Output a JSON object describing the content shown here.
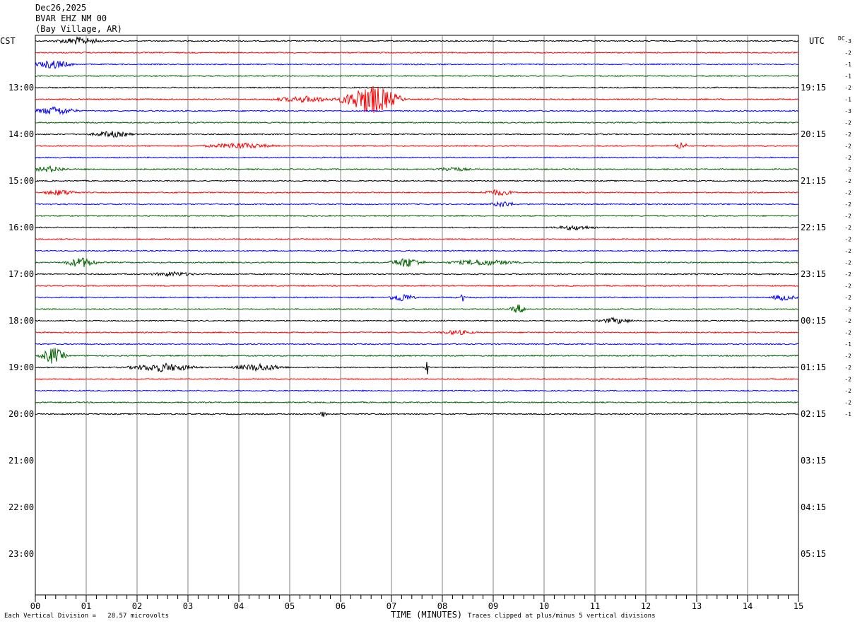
{
  "header": {
    "date": "Dec26,2025",
    "station": "BVAR EHZ NM 00",
    "location": "(Bay Village, AR)"
  },
  "left_axis_title": "CST",
  "right_axis_title": "UTC",
  "dc_label": "DC",
  "footer": {
    "vertical_division": "Each Vertical Division =   28.57 microvolts",
    "x_title": "TIME (MINUTES)",
    "clip_note": "Traces clipped at plus/minus 5 vertical divisions"
  },
  "chart_data": {
    "type": "line",
    "title": "",
    "xlabel": "TIME (MINUTES)",
    "xlim": [
      0,
      15
    ],
    "x_ticks": [
      "00",
      "01",
      "02",
      "03",
      "04",
      "05",
      "06",
      "07",
      "08",
      "09",
      "10",
      "11",
      "12",
      "13",
      "14",
      "15"
    ],
    "rows_total": 48,
    "row_minutes": 15,
    "left_hour_labels": [
      {
        "row": 4,
        "label": "13:00"
      },
      {
        "row": 8,
        "label": "14:00"
      },
      {
        "row": 12,
        "label": "15:00"
      },
      {
        "row": 16,
        "label": "16:00"
      },
      {
        "row": 20,
        "label": "17:00"
      },
      {
        "row": 24,
        "label": "18:00"
      },
      {
        "row": 28,
        "label": "19:00"
      },
      {
        "row": 32,
        "label": "20:00"
      },
      {
        "row": 36,
        "label": "21:00"
      },
      {
        "row": 40,
        "label": "22:00"
      },
      {
        "row": 44,
        "label": "23:00"
      }
    ],
    "right_hour_labels": [
      {
        "row": 4,
        "label": "19:15"
      },
      {
        "row": 8,
        "label": "20:15"
      },
      {
        "row": 12,
        "label": "21:15"
      },
      {
        "row": 16,
        "label": "22:15"
      },
      {
        "row": 20,
        "label": "23:15"
      },
      {
        "row": 24,
        "label": "00:15"
      },
      {
        "row": 28,
        "label": "01:15"
      },
      {
        "row": 32,
        "label": "02:15"
      },
      {
        "row": 36,
        "label": "03:15"
      },
      {
        "row": 40,
        "label": "04:15"
      },
      {
        "row": 44,
        "label": "05:15"
      }
    ],
    "dc_offsets": [
      "-3",
      "-2",
      "-1",
      "-1",
      "-2",
      "-1",
      "-3",
      "-2",
      "-2",
      "-2",
      "-2",
      "-2",
      "-2",
      "-2",
      "-2",
      "-2",
      "-2",
      "-2",
      "-2",
      "-2",
      "-2",
      "-2",
      "-2",
      "-2",
      "-2",
      "-2",
      "-1",
      "-2",
      "-2",
      "-2",
      "-2",
      "-2",
      "-1"
    ],
    "trace_colors": [
      "#000000",
      "#ff0000",
      "#0000ff",
      "#006400"
    ],
    "grid": true,
    "traces": [
      {
        "row": 0,
        "bursts": [
          {
            "t": 0.85,
            "dur": 0.55,
            "amp": 5
          }
        ]
      },
      {
        "row": 1,
        "bursts": []
      },
      {
        "row": 2,
        "bursts": [
          {
            "t": 0.35,
            "dur": 0.45,
            "amp": 6
          }
        ]
      },
      {
        "row": 3,
        "bursts": []
      },
      {
        "row": 4,
        "bursts": []
      },
      {
        "row": 5,
        "bursts": [
          {
            "t": 5.3,
            "dur": 0.8,
            "amp": 4
          },
          {
            "t": 6.6,
            "dur": 0.7,
            "amp": 22
          }
        ]
      },
      {
        "row": 6,
        "bursts": [
          {
            "t": 0.4,
            "dur": 0.5,
            "amp": 6
          }
        ]
      },
      {
        "row": 7,
        "bursts": []
      },
      {
        "row": 8,
        "bursts": [
          {
            "t": 1.5,
            "dur": 0.5,
            "amp": 4
          }
        ]
      },
      {
        "row": 9,
        "bursts": [
          {
            "t": 4.0,
            "dur": 0.8,
            "amp": 4
          },
          {
            "t": 12.7,
            "dur": 0.15,
            "amp": 6
          }
        ]
      },
      {
        "row": 10,
        "bursts": []
      },
      {
        "row": 11,
        "bursts": [
          {
            "t": 0.3,
            "dur": 0.4,
            "amp": 4
          },
          {
            "t": 8.2,
            "dur": 0.4,
            "amp": 3
          }
        ]
      },
      {
        "row": 12,
        "bursts": []
      },
      {
        "row": 13,
        "bursts": [
          {
            "t": 0.5,
            "dur": 0.4,
            "amp": 4
          },
          {
            "t": 9.1,
            "dur": 0.4,
            "amp": 4
          }
        ]
      },
      {
        "row": 14,
        "bursts": [
          {
            "t": 9.2,
            "dur": 0.3,
            "amp": 4
          }
        ]
      },
      {
        "row": 15,
        "bursts": []
      },
      {
        "row": 16,
        "bursts": [
          {
            "t": 10.6,
            "dur": 0.5,
            "amp": 3
          }
        ]
      },
      {
        "row": 17,
        "bursts": []
      },
      {
        "row": 18,
        "bursts": []
      },
      {
        "row": 19,
        "bursts": [
          {
            "t": 0.9,
            "dur": 0.4,
            "amp": 7
          },
          {
            "t": 7.3,
            "dur": 0.4,
            "amp": 7
          },
          {
            "t": 8.8,
            "dur": 0.8,
            "amp": 4
          }
        ]
      },
      {
        "row": 20,
        "bursts": [
          {
            "t": 2.7,
            "dur": 0.5,
            "amp": 3
          }
        ]
      },
      {
        "row": 21,
        "bursts": []
      },
      {
        "row": 22,
        "bursts": [
          {
            "t": 7.2,
            "dur": 0.3,
            "amp": 6
          },
          {
            "t": 8.4,
            "dur": 0.05,
            "amp": 7
          },
          {
            "t": 14.7,
            "dur": 0.3,
            "amp": 4
          }
        ]
      },
      {
        "row": 23,
        "bursts": [
          {
            "t": 9.5,
            "dur": 0.2,
            "amp": 6
          }
        ]
      },
      {
        "row": 24,
        "bursts": [
          {
            "t": 11.4,
            "dur": 0.4,
            "amp": 4
          }
        ]
      },
      {
        "row": 25,
        "bursts": [
          {
            "t": 8.3,
            "dur": 0.4,
            "amp": 3
          }
        ]
      },
      {
        "row": 26,
        "bursts": []
      },
      {
        "row": 27,
        "bursts": [
          {
            "t": 0.35,
            "dur": 0.3,
            "amp": 12
          }
        ]
      },
      {
        "row": 28,
        "bursts": [
          {
            "t": 2.5,
            "dur": 0.8,
            "amp": 6
          },
          {
            "t": 4.4,
            "dur": 0.6,
            "amp": 5
          },
          {
            "t": 7.7,
            "dur": 0.04,
            "amp": 12
          }
        ]
      },
      {
        "row": 29,
        "bursts": []
      },
      {
        "row": 30,
        "bursts": []
      },
      {
        "row": 31,
        "bursts": []
      },
      {
        "row": 32,
        "bursts": [
          {
            "t": 5.65,
            "dur": 0.1,
            "amp": 4
          }
        ]
      }
    ]
  }
}
